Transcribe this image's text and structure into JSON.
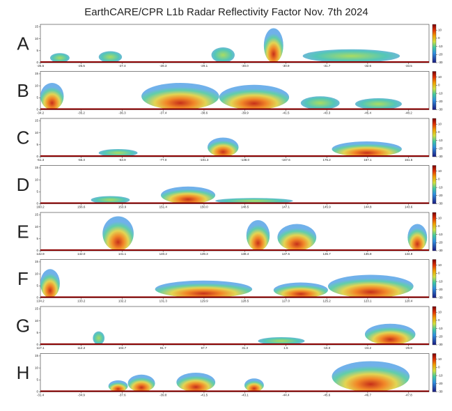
{
  "title": "EarthCARE/CPR L1b Radar Reflectivity Factor Nov. 7th 2024",
  "chart_data": [
    {
      "type": "curtain",
      "label": "A",
      "categories": [
        "-25.5",
        "-26.5",
        "-27.4",
        "-28.3",
        "-29.1",
        "-30.0",
        "-30.9",
        "-31.7",
        "-32.6",
        "-33.5"
      ],
      "ylim": [
        0,
        16
      ],
      "yticks": [
        0,
        5,
        10,
        15
      ],
      "clim": [
        -30,
        17
      ],
      "cticks": [
        10,
        0,
        -10,
        -20,
        -30
      ]
    },
    {
      "type": "curtain",
      "label": "B",
      "categories": [
        "-34.2",
        "-35.2",
        "-36.3",
        "-37.4",
        "-38.6",
        "-39.9",
        "-41.5",
        "-43.3",
        "-45.4",
        "-48.2"
      ],
      "ylim": [
        0,
        16
      ],
      "yticks": [
        0,
        5,
        10,
        15
      ],
      "clim": [
        -30,
        17
      ],
      "cticks": [
        10,
        0,
        -10,
        -20,
        -30
      ]
    },
    {
      "type": "curtain",
      "label": "C",
      "categories": [
        "-51.3",
        "-56.3",
        "-63.9",
        "-77.0",
        "-101.3",
        "-138.0",
        "-167.6",
        "176.2",
        "167.1",
        "161.5"
      ],
      "ylim": [
        0,
        16
      ],
      "yticks": [
        0,
        5,
        10,
        15
      ],
      "clim": [
        -30,
        17
      ],
      "cticks": [
        10,
        0,
        -10,
        -20,
        -30
      ]
    },
    {
      "type": "curtain",
      "label": "D",
      "categories": [
        "160.2",
        "156.6",
        "153.9",
        "151.4",
        "150.0",
        "148.5",
        "147.1",
        "145.9",
        "144.8",
        "143.6"
      ],
      "ylim": [
        0,
        16
      ],
      "yticks": [
        0,
        5,
        10,
        15
      ],
      "clim": [
        -30,
        17
      ],
      "cticks": [
        10,
        0,
        -10,
        -20,
        -30
      ]
    },
    {
      "type": "curtain",
      "label": "E",
      "categories": [
        "142.9",
        "142.0",
        "141.1",
        "140.2",
        "139.3",
        "138.4",
        "137.6",
        "136.7",
        "135.8",
        "134.9"
      ],
      "ylim": [
        0,
        16
      ],
      "yticks": [
        0,
        5,
        10,
        15
      ],
      "clim": [
        -30,
        17
      ],
      "cticks": [
        10,
        0,
        -10,
        -20,
        -30
      ]
    },
    {
      "type": "curtain",
      "label": "F",
      "categories": [
        "134.2",
        "133.2",
        "132.2",
        "131.3",
        "129.9",
        "128.5",
        "127.0",
        "125.2",
        "123.1",
        "120.4"
      ],
      "ylim": [
        0,
        16
      ],
      "yticks": [
        0,
        5,
        10,
        15
      ],
      "clim": [
        -30,
        17
      ],
      "cticks": [
        10,
        0,
        -10,
        -20,
        -30
      ]
    },
    {
      "type": "curtain",
      "label": "G",
      "categories": [
        "117.1",
        "112.2",
        "104.7",
        "91.7",
        "67.7",
        "31.3",
        "1.5",
        "-15.0",
        "-24.2",
        "-29.9"
      ],
      "ylim": [
        0,
        16
      ],
      "yticks": [
        0,
        5,
        10,
        15
      ],
      "clim": [
        -30,
        17
      ],
      "cticks": [
        10,
        0,
        -10,
        -20,
        -30
      ]
    },
    {
      "type": "curtain",
      "label": "H",
      "categories": [
        "-31.4",
        "-34.9",
        "-37.6",
        "-39.8",
        "-41.5",
        "-43.1",
        "-44.4",
        "-45.6",
        "-46.7",
        "-47.8"
      ],
      "ylim": [
        0,
        16
      ],
      "yticks": [
        0,
        5,
        10,
        15
      ],
      "clim": [
        -30,
        17
      ],
      "cticks": [
        10,
        0,
        -10,
        -20,
        -30
      ]
    }
  ]
}
